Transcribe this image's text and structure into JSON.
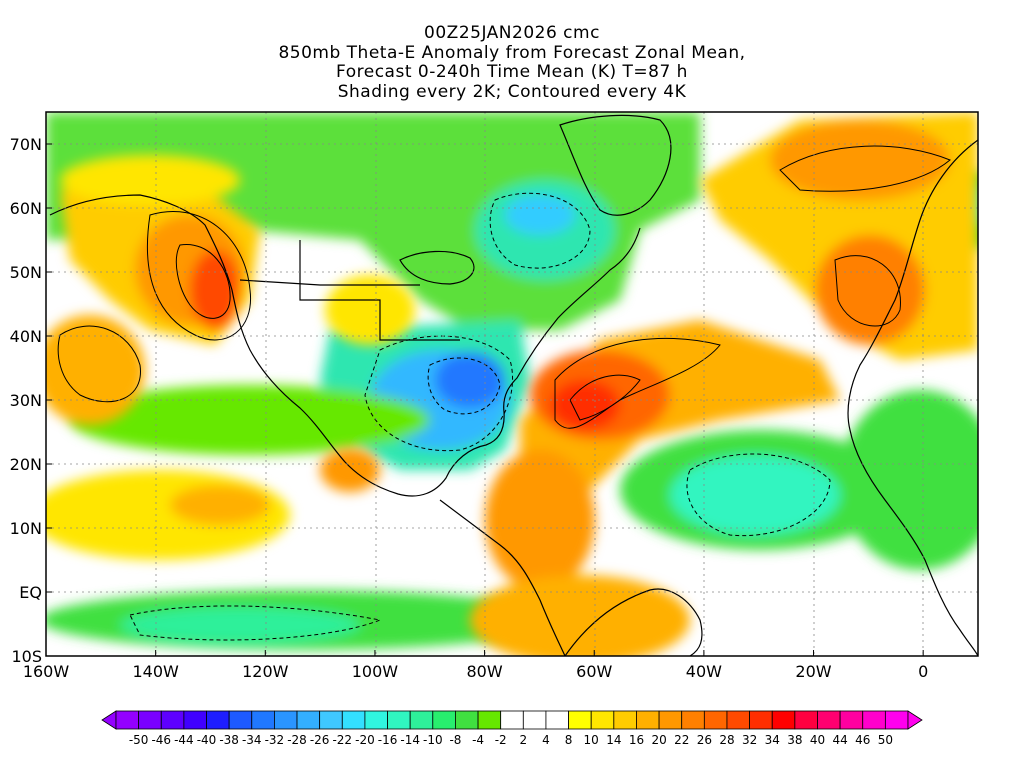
{
  "header": {
    "run": "00Z25JAN2026 cmc",
    "title": "850mb Theta-E Anomaly from Forecast Zonal Mean,",
    "subtitle": "Forecast 0-240h Time Mean (K) T=87 h",
    "note": "Shading every 2K; Contoured every 4K"
  },
  "map": {
    "lon_range": [
      -160,
      10
    ],
    "lat_range": [
      -10,
      75
    ],
    "lat_ticks": [
      {
        "value": 70,
        "label": "70N"
      },
      {
        "value": 60,
        "label": "60N"
      },
      {
        "value": 50,
        "label": "50N"
      },
      {
        "value": 40,
        "label": "40N"
      },
      {
        "value": 30,
        "label": "30N"
      },
      {
        "value": 20,
        "label": "20N"
      },
      {
        "value": 10,
        "label": "10N"
      },
      {
        "value": 0,
        "label": "EQ"
      },
      {
        "value": -10,
        "label": "10S"
      }
    ],
    "lon_ticks": [
      {
        "value": -160,
        "label": "160W"
      },
      {
        "value": -140,
        "label": "140W"
      },
      {
        "value": -120,
        "label": "120W"
      },
      {
        "value": -100,
        "label": "100W"
      },
      {
        "value": -80,
        "label": "80W"
      },
      {
        "value": -60,
        "label": "60W"
      },
      {
        "value": -40,
        "label": "40W"
      },
      {
        "value": -20,
        "label": "20W"
      },
      {
        "value": 0,
        "label": "0"
      }
    ],
    "anomaly_regions": [
      {
        "name": "ne-pacific-warm",
        "lon": -131,
        "lat": 48,
        "value": 20
      },
      {
        "name": "western-atlantic-warm",
        "lon": -60,
        "lat": 31,
        "value": 24
      },
      {
        "name": "eastern-us-cold",
        "lon": -86,
        "lat": 31,
        "value": -26
      },
      {
        "name": "quebec-cold",
        "lon": -72,
        "lat": 58,
        "value": -18
      },
      {
        "name": "europe-warm",
        "lon": -12,
        "lat": 50,
        "value": 18
      },
      {
        "name": "tropical-atlantic-cool",
        "lon": -35,
        "lat": 12,
        "value": -12
      },
      {
        "name": "central-pacific-warm",
        "lon": -148,
        "lat": 38,
        "value": 10
      },
      {
        "name": "greenland-cool",
        "lon": -45,
        "lat": 68,
        "value": -8
      },
      {
        "name": "south-america-warm",
        "lon": -60,
        "lat": -5,
        "value": 10
      }
    ]
  },
  "colorbar": {
    "labels": [
      "-50",
      "-46",
      "-44",
      "-40",
      "-38",
      "-34",
      "-32",
      "-28",
      "-26",
      "-22",
      "-20",
      "-16",
      "-14",
      "-10",
      "-8",
      "-4",
      "-2",
      "2",
      "4",
      "8",
      "10",
      "14",
      "16",
      "20",
      "22",
      "26",
      "28",
      "32",
      "34",
      "38",
      "40",
      "44",
      "46",
      "50"
    ],
    "colors": [
      "#9400ff",
      "#7a00ff",
      "#5e00ff",
      "#4000ff",
      "#1e1eff",
      "#1e5aff",
      "#2078ff",
      "#2a95ff",
      "#33afff",
      "#3fc8ff",
      "#33e0ff",
      "#30f5e0",
      "#30f5c0",
      "#2ef09a",
      "#28ee6e",
      "#40e040",
      "#66e800",
      "#ffffff",
      "#ffffff",
      "#ffffff",
      "#ffff00",
      "#ffe600",
      "#ffcc00",
      "#ffb000",
      "#ff9800",
      "#ff8000",
      "#ff6600",
      "#ff4a00",
      "#ff2e00",
      "#ff0000",
      "#ff0040",
      "#ff0070",
      "#ff00a0",
      "#ff00cc",
      "#ff00ee"
    ]
  }
}
